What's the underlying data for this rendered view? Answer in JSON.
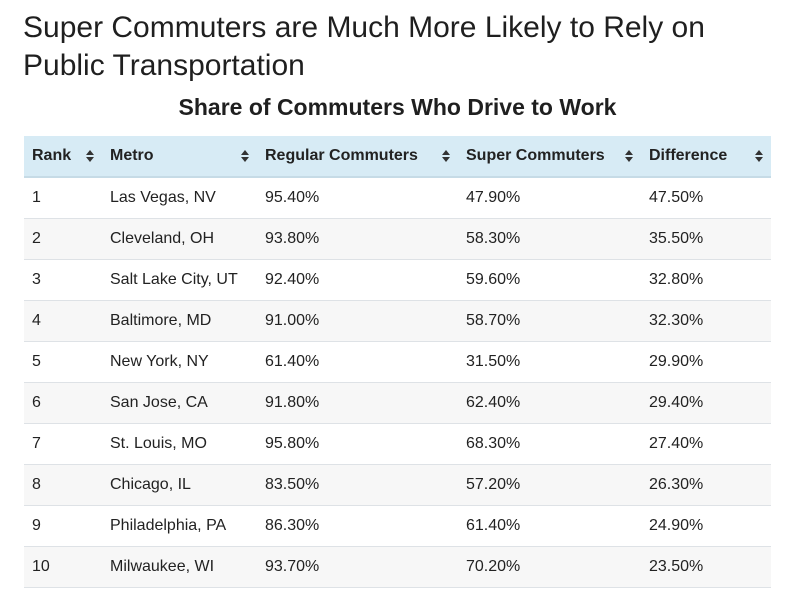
{
  "title": "Super Commuters are Much More Likely to Rely on Public Transportation",
  "subtitle": "Share of Commuters Who Drive to Work",
  "table": {
    "columns": [
      "Rank",
      "Metro",
      "Regular Commuters",
      "Super Commuters",
      "Difference"
    ],
    "rows": [
      [
        "1",
        "Las Vegas, NV",
        "95.40%",
        "47.90%",
        "47.50%"
      ],
      [
        "2",
        "Cleveland, OH",
        "93.80%",
        "58.30%",
        "35.50%"
      ],
      [
        "3",
        "Salt Lake City, UT",
        "92.40%",
        "59.60%",
        "32.80%"
      ],
      [
        "4",
        "Baltimore, MD",
        "91.00%",
        "58.70%",
        "32.30%"
      ],
      [
        "5",
        "New York, NY",
        "61.40%",
        "31.50%",
        "29.90%"
      ],
      [
        "6",
        "San Jose, CA",
        "91.80%",
        "62.40%",
        "29.40%"
      ],
      [
        "7",
        "St. Louis, MO",
        "95.80%",
        "68.30%",
        "27.40%"
      ],
      [
        "8",
        "Chicago, IL",
        "83.50%",
        "57.20%",
        "26.30%"
      ],
      [
        "9",
        "Philadelphia, PA",
        "86.30%",
        "61.40%",
        "24.90%"
      ],
      [
        "10",
        "Milwaukee, WI",
        "93.70%",
        "70.20%",
        "23.50%"
      ]
    ]
  },
  "colors": {
    "header_bg": "#d7ebf5",
    "stripe_bg": "#f7f7f7",
    "text": "#222222"
  },
  "icons": {
    "sort": "sort-icon"
  }
}
